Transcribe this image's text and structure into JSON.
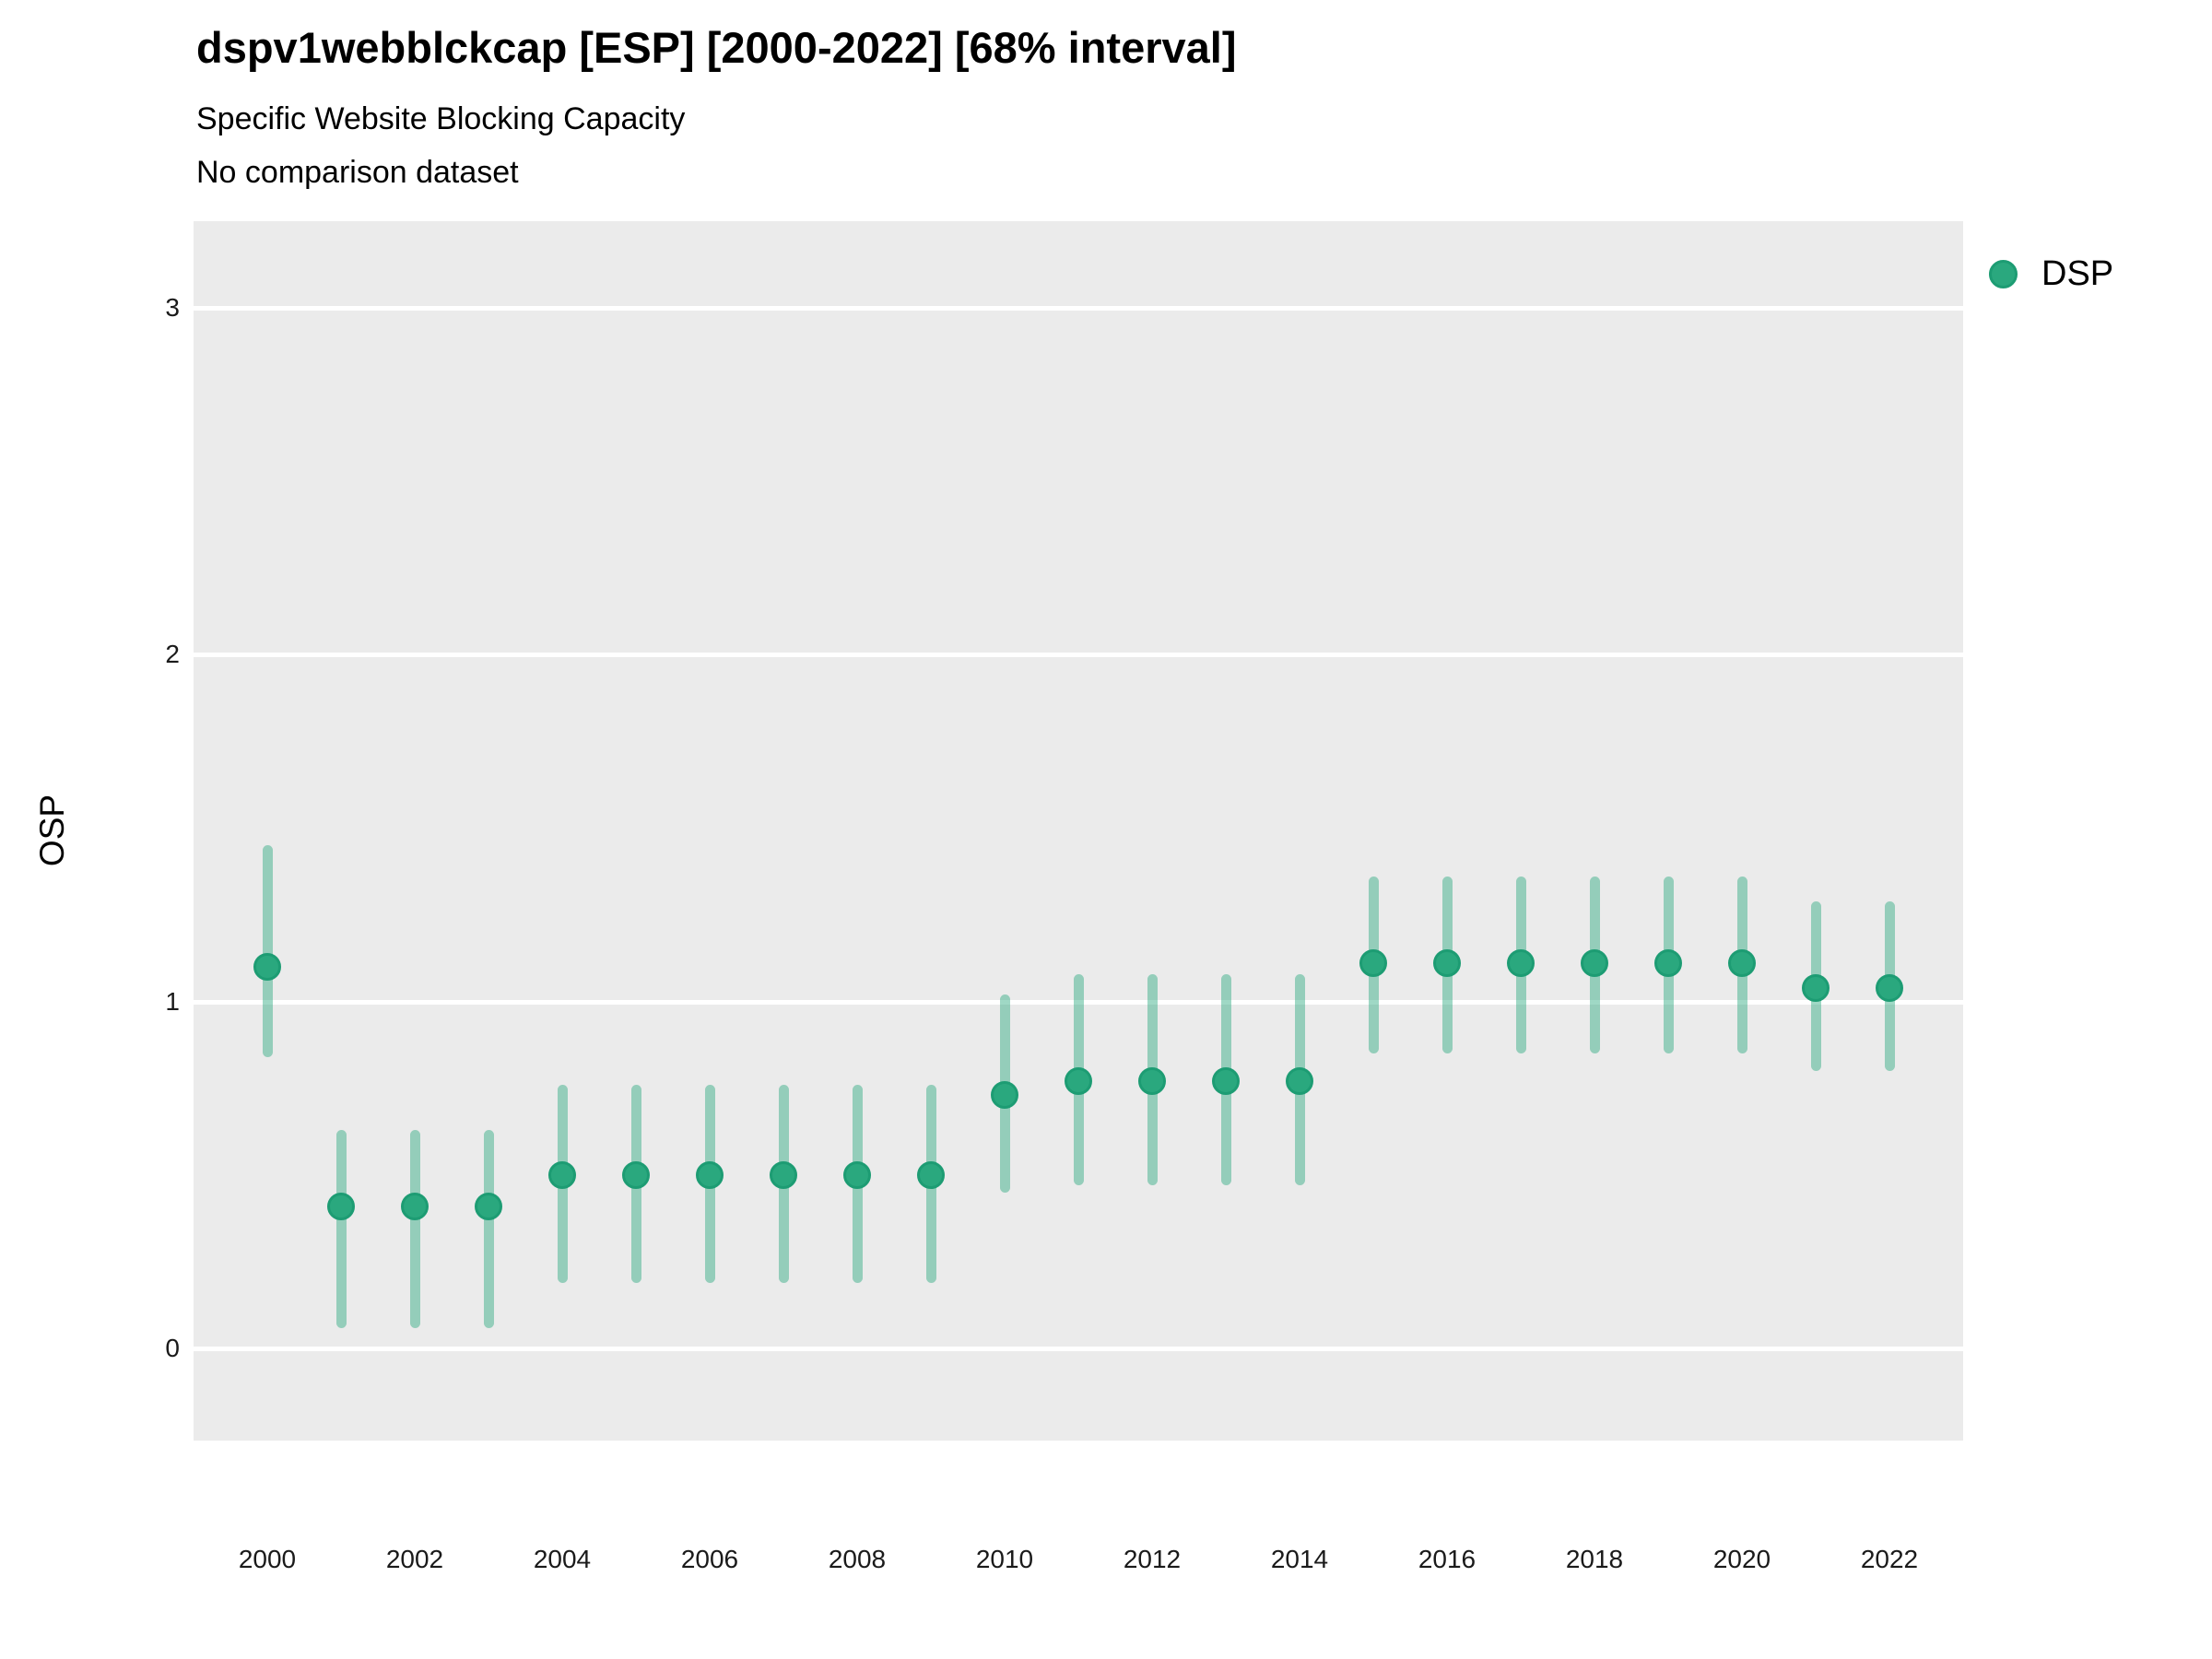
{
  "chart_data": {
    "type": "scatter",
    "title": "dspv1webblckcap [ESP] [2000-2022] [68% interval]",
    "subtitle": "Specific Website Blocking Capacity",
    "note": "No comparison dataset",
    "ylabel": "OSP",
    "xlabel": "",
    "interval_level": "68%",
    "legend": {
      "position": "right",
      "entries": [
        {
          "label": "DSP"
        }
      ]
    },
    "axes": {
      "xlim": [
        1999,
        2023
      ],
      "ylim": [
        -0.265,
        3.25
      ],
      "xticks": [
        2000,
        2002,
        2004,
        2006,
        2008,
        2010,
        2012,
        2014,
        2016,
        2018,
        2020,
        2022
      ],
      "yticks": [
        0,
        1,
        2,
        3
      ],
      "grid": "major-horizontal-white"
    },
    "series": [
      {
        "name": "DSP",
        "points": [
          {
            "year": 2000,
            "est": 1.1,
            "lo": 0.84,
            "hi": 1.45
          },
          {
            "year": 2001,
            "est": 0.41,
            "lo": 0.06,
            "hi": 0.63
          },
          {
            "year": 2002,
            "est": 0.41,
            "lo": 0.06,
            "hi": 0.63
          },
          {
            "year": 2003,
            "est": 0.41,
            "lo": 0.06,
            "hi": 0.63
          },
          {
            "year": 2004,
            "est": 0.5,
            "lo": 0.19,
            "hi": 0.76
          },
          {
            "year": 2005,
            "est": 0.5,
            "lo": 0.19,
            "hi": 0.76
          },
          {
            "year": 2006,
            "est": 0.5,
            "lo": 0.19,
            "hi": 0.76
          },
          {
            "year": 2007,
            "est": 0.5,
            "lo": 0.19,
            "hi": 0.76
          },
          {
            "year": 2008,
            "est": 0.5,
            "lo": 0.19,
            "hi": 0.76
          },
          {
            "year": 2009,
            "est": 0.5,
            "lo": 0.19,
            "hi": 0.76
          },
          {
            "year": 2010,
            "est": 0.73,
            "lo": 0.45,
            "hi": 1.02
          },
          {
            "year": 2011,
            "est": 0.77,
            "lo": 0.47,
            "hi": 1.08
          },
          {
            "year": 2012,
            "est": 0.77,
            "lo": 0.47,
            "hi": 1.08
          },
          {
            "year": 2013,
            "est": 0.77,
            "lo": 0.47,
            "hi": 1.08
          },
          {
            "year": 2014,
            "est": 0.77,
            "lo": 0.47,
            "hi": 1.08
          },
          {
            "year": 2015,
            "est": 1.11,
            "lo": 0.85,
            "hi": 1.36
          },
          {
            "year": 2016,
            "est": 1.11,
            "lo": 0.85,
            "hi": 1.36
          },
          {
            "year": 2017,
            "est": 1.11,
            "lo": 0.85,
            "hi": 1.36
          },
          {
            "year": 2018,
            "est": 1.11,
            "lo": 0.85,
            "hi": 1.36
          },
          {
            "year": 2019,
            "est": 1.11,
            "lo": 0.85,
            "hi": 1.36
          },
          {
            "year": 2020,
            "est": 1.11,
            "lo": 0.85,
            "hi": 1.36
          },
          {
            "year": 2021,
            "est": 1.04,
            "lo": 0.8,
            "hi": 1.29
          },
          {
            "year": 2022,
            "est": 1.04,
            "lo": 0.8,
            "hi": 1.29
          }
        ]
      }
    ]
  },
  "colors": {
    "marker_fill": "#2AA87E",
    "marker_stroke": "#1D9C73",
    "interval": "rgba(42,168,126,0.45)",
    "panel_bg": "#EBEBEB",
    "grid": "#FFFFFF",
    "title_text": "#000000",
    "tick_text": "#1A1A1A"
  }
}
